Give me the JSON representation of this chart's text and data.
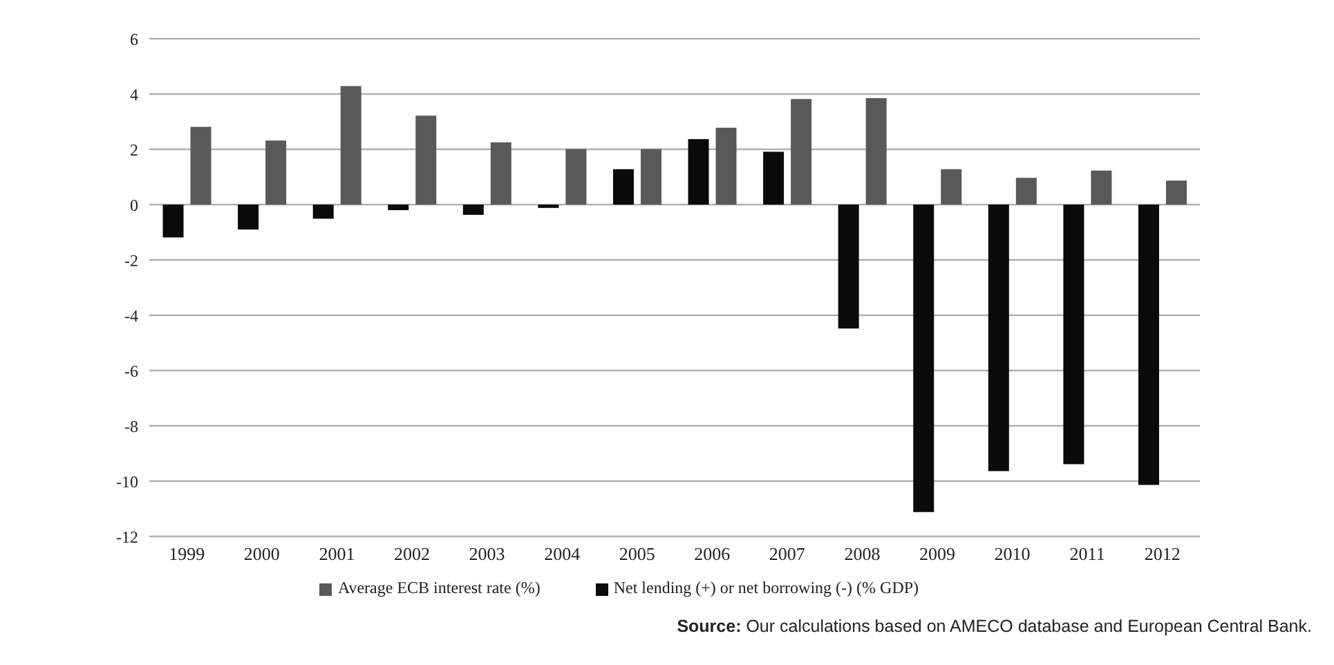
{
  "chart_data": {
    "type": "bar",
    "categories": [
      "1999",
      "2000",
      "2001",
      "2002",
      "2003",
      "2004",
      "2005",
      "2006",
      "2007",
      "2008",
      "2009",
      "2010",
      "2011",
      "2012"
    ],
    "series": [
      {
        "name": "Net lending (+) or net borrowing (-) (% GDP)",
        "color": "#0a0a0a",
        "values": [
          -1.19,
          -0.9,
          -0.51,
          -0.2,
          -0.37,
          -0.12,
          1.28,
          2.37,
          1.91,
          -4.48,
          -11.12,
          -9.64,
          -9.39,
          -10.14
        ]
      },
      {
        "name": "Average ECB interest rate (%)",
        "color": "#595959",
        "values": [
          2.81,
          2.32,
          4.29,
          3.22,
          2.25,
          2.01,
          2.01,
          2.78,
          3.82,
          3.85,
          1.28,
          0.97,
          1.23,
          0.87
        ]
      }
    ],
    "ylim": [
      -12,
      6
    ],
    "yticks": [
      -12,
      -10,
      -8,
      -6,
      -4,
      -2,
      0,
      2,
      4,
      6
    ],
    "grid": "y",
    "legend": "bottom",
    "annotations": [
      "Source: Our calculations based on AMECO database and European Central Bank."
    ]
  }
}
